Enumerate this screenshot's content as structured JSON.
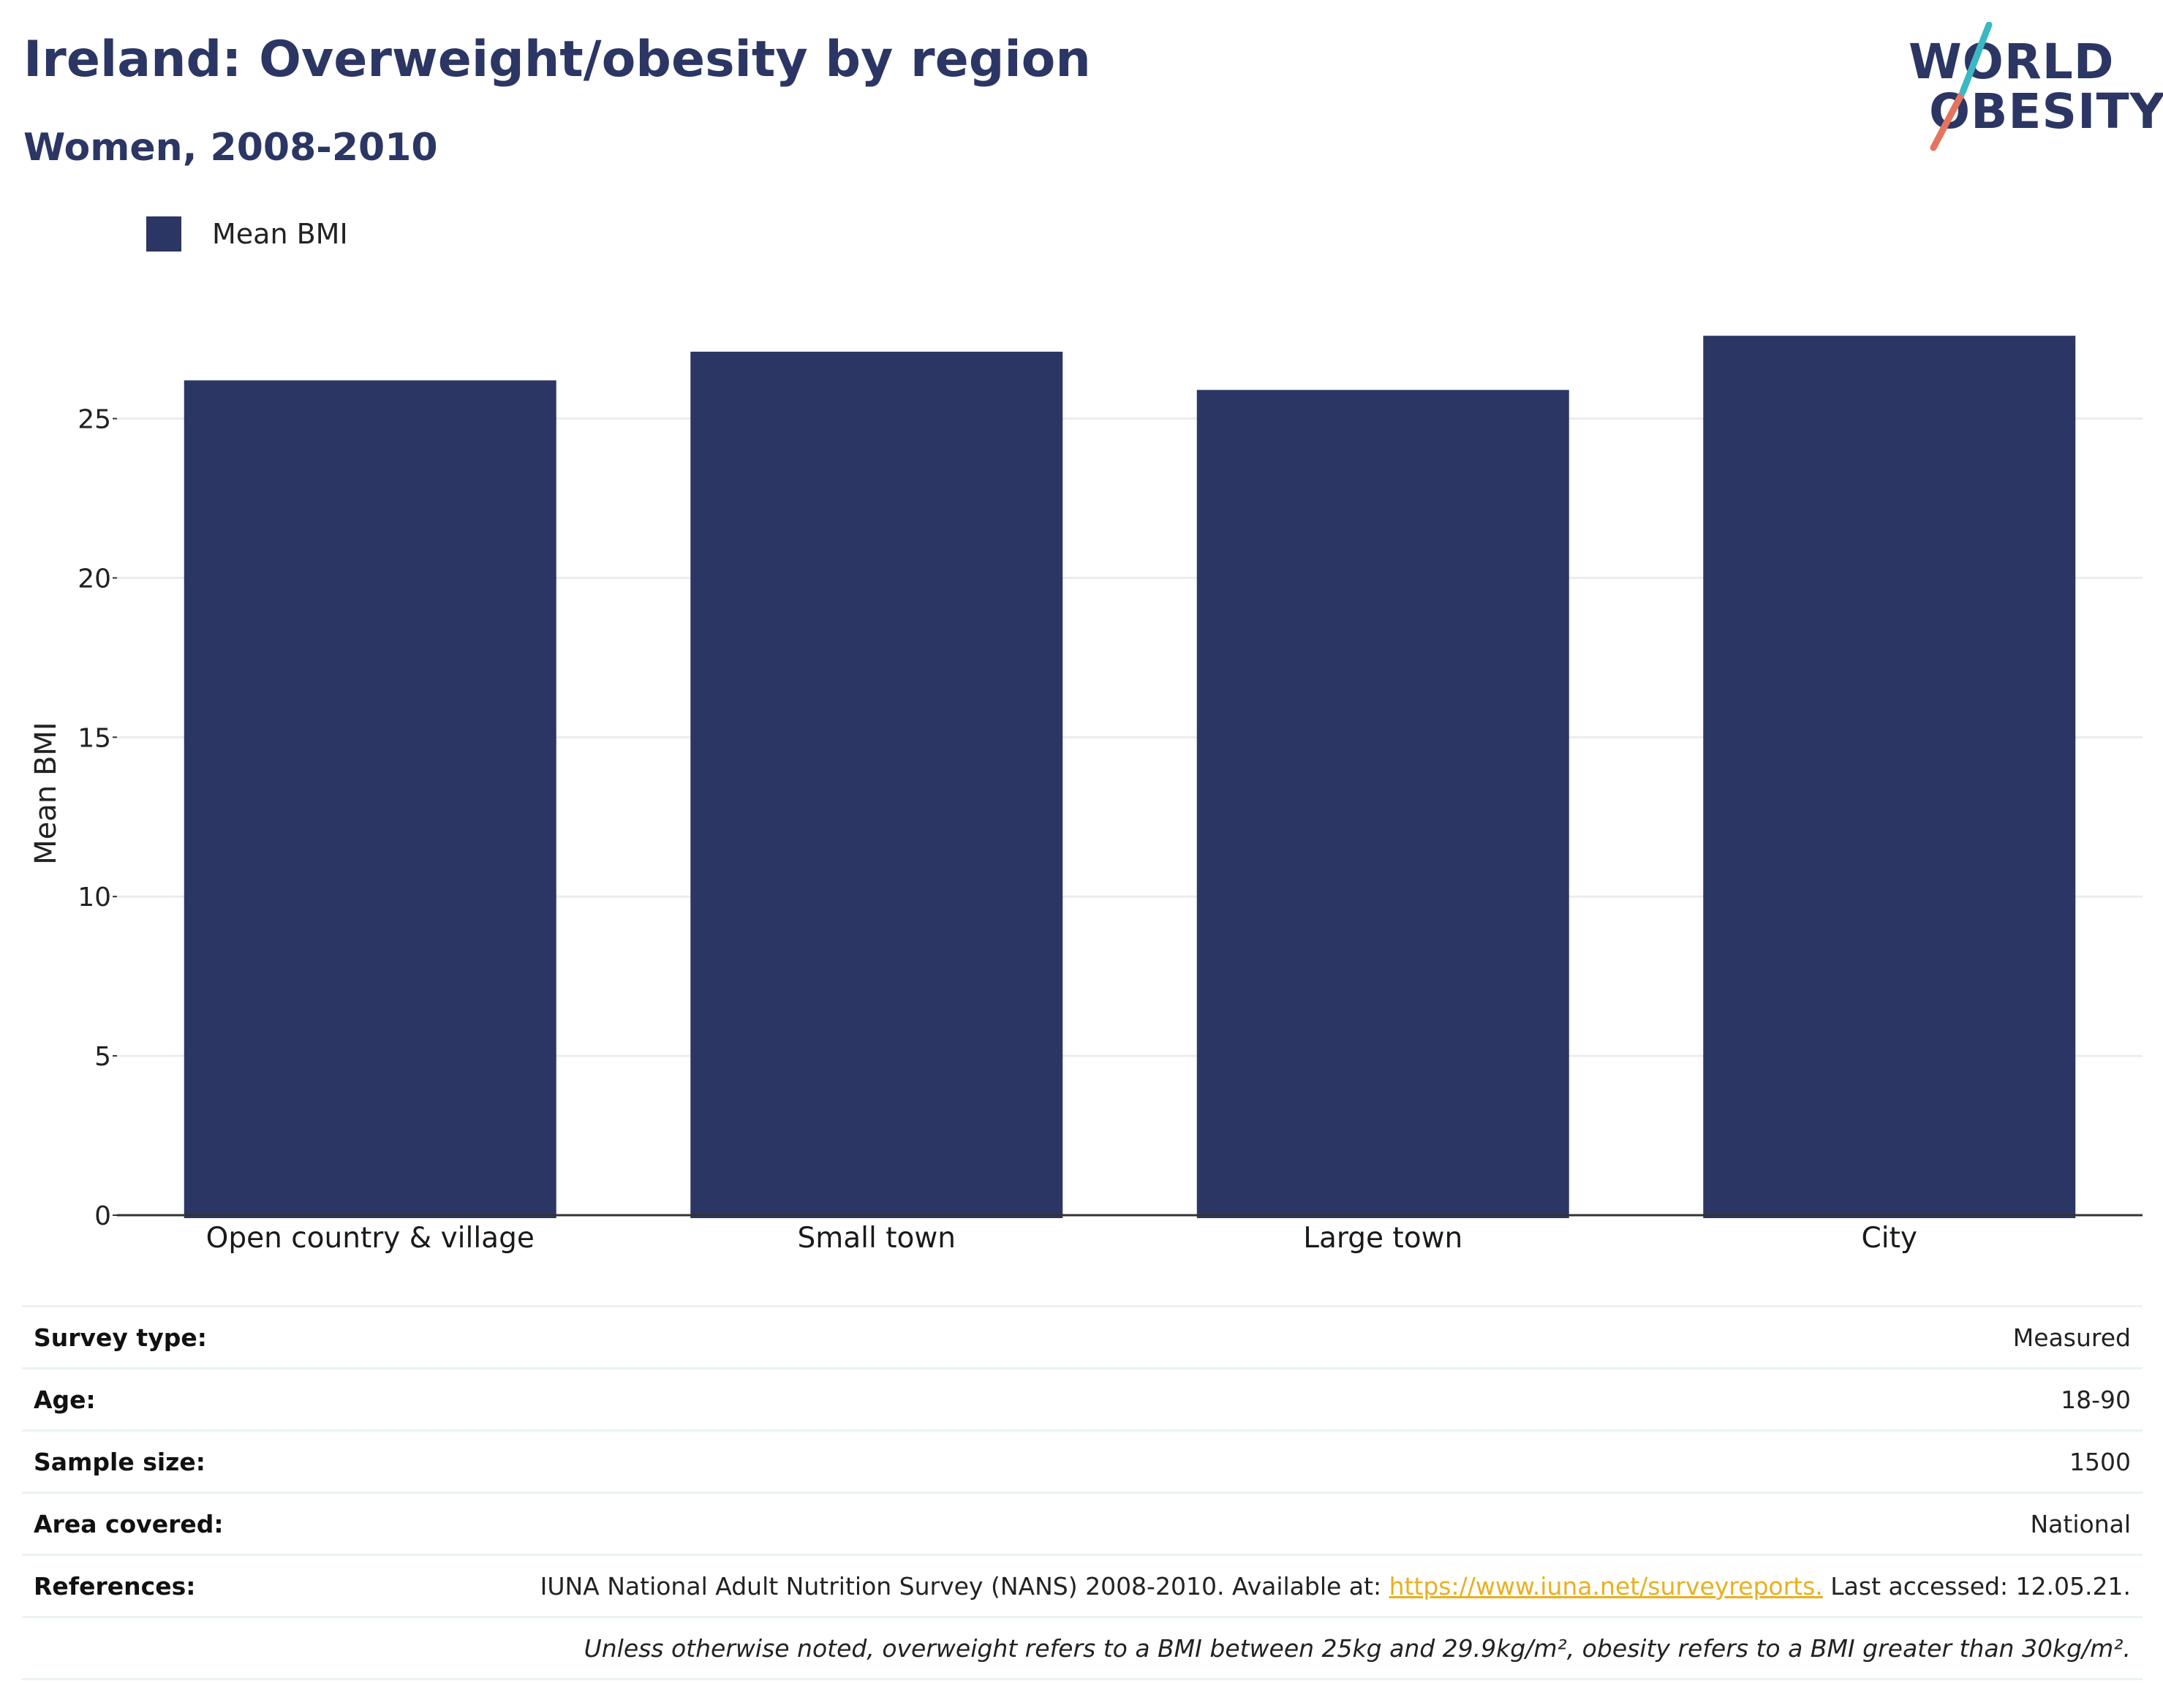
{
  "header": {
    "title": "Ireland: Overweight/obesity by region",
    "subtitle": "Women, 2008-2010"
  },
  "logo": {
    "line1": "WORLD",
    "line2": "OBESITY",
    "colors": {
      "text": "#2b3664",
      "slash_teal": "#3bb8c3",
      "slash_coral": "#e5735f"
    }
  },
  "chart_data": {
    "type": "bar",
    "categories": [
      "Open country & village",
      "Small town",
      "Large town",
      "City"
    ],
    "series": [
      {
        "name": "Mean BMI",
        "values": [
          26.2,
          27.1,
          25.9,
          27.6
        ],
        "color": "#2b3664"
      }
    ],
    "ylabel": "Mean BMI",
    "xlabel": "",
    "ylim": [
      0,
      28.5
    ],
    "yticks": [
      0,
      5,
      10,
      15,
      20,
      25
    ],
    "grid": true,
    "legend": "top-left"
  },
  "info": {
    "rows": [
      {
        "label": "Survey type:",
        "value": "Measured"
      },
      {
        "label": "Age:",
        "value": "18-90"
      },
      {
        "label": "Sample size:",
        "value": "1500"
      },
      {
        "label": "Area covered:",
        "value": "National"
      }
    ],
    "references": {
      "label": "References:",
      "text_before": "IUNA National Adult Nutrition Survey (NANS) 2008-2010. Available at: ",
      "link": "https://www.iuna.net/surveyreports.",
      "text_after": " Last accessed: 12.05.21."
    },
    "note": "Unless otherwise noted, overweight refers to a BMI between 25kg and 29.9kg/m², obesity refers to a BMI greater than 30kg/m²."
  }
}
